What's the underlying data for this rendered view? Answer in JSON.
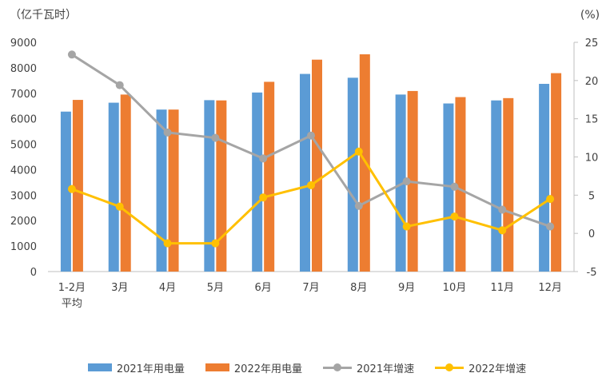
{
  "chart_data": {
    "type": "bar",
    "left_axis_unit": "（亿千瓦时）",
    "right_axis_unit": "(%)",
    "categories": [
      [
        "1-2月",
        "平均"
      ],
      [
        "3月"
      ],
      [
        "4月"
      ],
      [
        "5月"
      ],
      [
        "6月"
      ],
      [
        "7月"
      ],
      [
        "8月"
      ],
      [
        "9月"
      ],
      [
        "10月"
      ],
      [
        "11月"
      ],
      [
        "12月"
      ]
    ],
    "y_left": {
      "min": 0,
      "max": 9000,
      "step": 1000
    },
    "y_right": {
      "min": -5,
      "max": 25,
      "step": 5
    },
    "bar_series": [
      {
        "name": "2021年用电量",
        "color": "#5B9BD5",
        "values": [
          6280,
          6630,
          6360,
          6730,
          7030,
          7760,
          7610,
          6950,
          6600,
          6720,
          7370
        ]
      },
      {
        "name": "2022年用电量",
        "color": "#ED7D31",
        "values": [
          6740,
          6950,
          6360,
          6720,
          7450,
          8320,
          8530,
          7090,
          6850,
          6810,
          7790
        ]
      }
    ],
    "line_series": [
      {
        "name": "2021年增速",
        "color": "#A5A5A5",
        "values": [
          23.4,
          19.4,
          13.2,
          12.5,
          9.8,
          12.8,
          3.6,
          6.8,
          6.1,
          3.1,
          0.9
        ]
      },
      {
        "name": "2022年增速",
        "color": "#FFC000",
        "values": [
          5.8,
          3.5,
          -1.3,
          -1.3,
          4.7,
          6.3,
          10.7,
          0.9,
          2.2,
          0.4,
          4.5
        ]
      }
    ]
  }
}
